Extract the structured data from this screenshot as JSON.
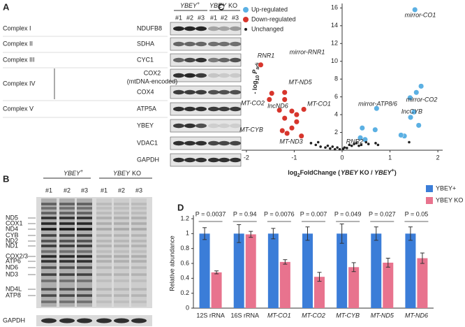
{
  "panel_a": {
    "label": "A",
    "groups": [
      {
        "gene": "YBEY",
        "sup": "+"
      },
      {
        "gene": "YBEY",
        "tag": "KO"
      }
    ],
    "lanes": [
      "#1",
      "#2",
      "#3",
      "#1",
      "#2",
      "#3"
    ],
    "complexes": [
      "Complex I",
      "Complex II",
      "Complex III",
      "Complex IV",
      "Complex V"
    ],
    "rows": [
      "NDUFB8",
      "SDHA",
      "CYC1",
      "COX2",
      "COX4",
      "ATP5A",
      "YBEY",
      "VDAC1",
      "GAPDH"
    ],
    "cox2_note": "(mtDNA-encoded)"
  },
  "panel_b": {
    "label": "B",
    "groups": [
      {
        "gene": "YBEY",
        "sup": "+"
      },
      {
        "gene": "YBEY",
        "tag": "KO"
      }
    ],
    "lanes": [
      "#1",
      "#2",
      "#3",
      "#1",
      "#2",
      "#3"
    ],
    "bands": [
      "ND5",
      "COX1",
      "ND4",
      "CYB",
      "ND2",
      "ND1",
      "COX2/3",
      "ATP6",
      "ND6",
      "ND3",
      "ND4L",
      "ATP8"
    ],
    "loading": "GAPDH"
  },
  "chart_data": [
    {
      "type": "scatter",
      "panel": "C",
      "x_label": [
        "log",
        "2",
        "FoldChange (",
        "YBEY",
        " KO / ",
        "YBEY",
        "+",
        ")"
      ],
      "y_label": [
        "- log",
        "10",
        "P",
        "adj"
      ],
      "xlim": [
        -2.1,
        2.1
      ],
      "ylim": [
        0,
        16.5
      ],
      "xticks": [
        -2,
        -1,
        0,
        1,
        2
      ],
      "yticks": [
        2,
        4,
        6,
        8,
        10,
        12,
        14,
        16
      ],
      "legend": "upper left",
      "series": [
        {
          "name": "Up-regulated",
          "color": "#5bb0e3",
          "x": [
            1.52,
            1.65,
            1.55,
            1.42,
            1.5,
            1.43,
            1.6,
            1.3,
            1.23,
            0.72,
            0.69,
            0.42,
            0.38,
            0.48
          ],
          "values": [
            15.8,
            7.2,
            6.5,
            5.9,
            4.3,
            3.7,
            2.8,
            1.6,
            1.7,
            4.7,
            2.3,
            2.5,
            1.4,
            1.2
          ]
        },
        {
          "name": "Down-regulated",
          "color": "#d7352c",
          "x": [
            -1.7,
            -1.47,
            -1.52,
            -1.2,
            -1.2,
            -1.31,
            -1.05,
            -0.95,
            -0.8,
            -1.2,
            -0.95,
            -1.05,
            -1.25,
            -0.85,
            -1.15
          ],
          "values": [
            9.6,
            6.4,
            5.7,
            6.5,
            5.7,
            4.5,
            4.4,
            4.0,
            4.6,
            3.6,
            3.2,
            2.5,
            2.2,
            1.6,
            1.9
          ]
        },
        {
          "name": "Unchanged",
          "color": "#222222",
          "x": [
            -0.65,
            -0.55,
            -0.5,
            -0.45,
            -0.35,
            -0.3,
            -0.25,
            -0.2,
            -0.15,
            -0.1,
            -0.05,
            0.02,
            0.05,
            0.1,
            0.15,
            0.2,
            0.25,
            0.3,
            0.35,
            0.4,
            0.5,
            0.55,
            0.7,
            0.75,
            1.4
          ],
          "values": [
            0.8,
            0.6,
            0.9,
            0.4,
            0.3,
            0.5,
            0.2,
            0.4,
            0.1,
            0.3,
            0.1,
            0.15,
            0.3,
            0.25,
            0.6,
            0.5,
            0.7,
            0.8,
            0.5,
            0.6,
            0.9,
            0.7,
            0.8,
            0.6,
            0.9
          ]
        }
      ],
      "annotations": [
        {
          "text": "mirror-CO1",
          "color": "#5bb0e3"
        },
        {
          "text": "RNR1",
          "color": "#d7352c"
        },
        {
          "text": "mirror-RNR1",
          "color": "#d7352c"
        },
        {
          "text": "MT-ND5",
          "color": "#d7352c"
        },
        {
          "text": "MT-CO2",
          "color": "#d7352c"
        },
        {
          "text": "lncND6",
          "color": "#d7352c"
        },
        {
          "text": "MT-CO1",
          "color": "#d7352c"
        },
        {
          "text": "MT-CYB",
          "color": "#d7352c"
        },
        {
          "text": "MT-ND3",
          "color": "#d7352c"
        },
        {
          "text": "mirror-ATP8/6",
          "color": "#5bb0e3"
        },
        {
          "text": "mirror-CO2",
          "color": "#5bb0e3"
        },
        {
          "text": "lncCYB",
          "color": "#5bb0e3"
        },
        {
          "text": "RNR2",
          "color": "#222222"
        }
      ]
    },
    {
      "type": "bar",
      "panel": "D",
      "y_label": "Relative abundance",
      "categories": [
        "12S rRNA",
        "16S rRNA",
        "MT-CO1",
        "MT-CO2",
        "MT-CYB",
        "MT-ND5",
        "MT-ND6"
      ],
      "ylim": [
        0,
        1.2
      ],
      "yticks": [
        0,
        0.2,
        0.4,
        0.6,
        0.8,
        1,
        1.2
      ],
      "legend": "upper right",
      "series": [
        {
          "name": "YBEY+",
          "color": "#3b7dd8",
          "values": [
            1,
            1,
            1,
            1,
            1,
            1,
            1
          ],
          "errors": [
            0.08,
            0.12,
            0.07,
            0.09,
            0.13,
            0.09,
            0.09
          ]
        },
        {
          "name": "YBEY KO",
          "color": "#e8738e",
          "values": [
            0.48,
            0.99,
            0.62,
            0.42,
            0.55,
            0.61,
            0.67
          ],
          "errors": [
            0.02,
            0.04,
            0.03,
            0.06,
            0.06,
            0.06,
            0.07
          ]
        }
      ],
      "p_values": [
        "P = 0.0037",
        "P = 0.94",
        "P = 0.0076",
        "P = 0.007",
        "P = 0.049",
        "P = 0.027",
        "P = 0.05"
      ]
    }
  ]
}
